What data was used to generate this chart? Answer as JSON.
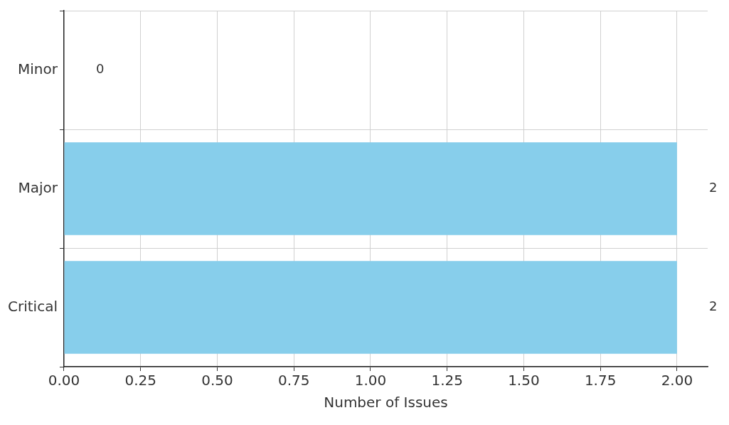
{
  "chart_data": {
    "type": "bar",
    "orientation": "horizontal",
    "categories": [
      "Minor",
      "Major",
      "Critical"
    ],
    "values": [
      0,
      2,
      2
    ],
    "color": "#87ceeb",
    "xlabel": "Number of Issues",
    "xlim": [
      0,
      2.1
    ],
    "xticks": [
      {
        "value": 0,
        "label": "0.00"
      },
      {
        "value": 0.25,
        "label": "0.25"
      },
      {
        "value": 0.5,
        "label": "0.50"
      },
      {
        "value": 0.75,
        "label": "0.75"
      },
      {
        "value": 1,
        "label": "1.00"
      },
      {
        "value": 1.25,
        "label": "1.25"
      },
      {
        "value": 1.5,
        "label": "1.50"
      },
      {
        "value": 1.75,
        "label": "1.75"
      },
      {
        "value": 2,
        "label": "2.00"
      }
    ],
    "grid": true,
    "data_labels": true,
    "legend": false
  }
}
